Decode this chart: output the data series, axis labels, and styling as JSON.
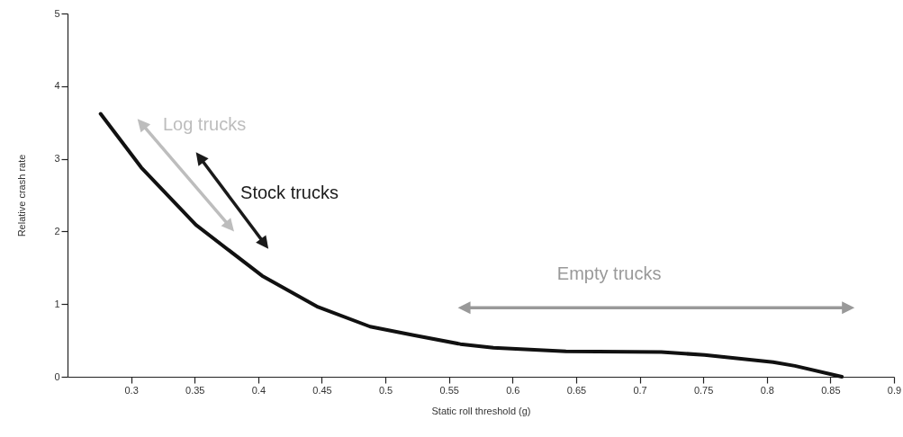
{
  "chart_data": {
    "type": "line",
    "xlabel": "Static roll threshold (g)",
    "ylabel": "Relative crash rate",
    "x": [
      0.276,
      0.308,
      0.351,
      0.403,
      0.447,
      0.488,
      0.523,
      0.559,
      0.585,
      0.642,
      0.717,
      0.751,
      0.805,
      0.822,
      0.859
    ],
    "series": [
      {
        "color": "#111111",
        "values": [
          3.62,
          2.88,
          2.09,
          1.39,
          0.96,
          0.69,
          0.57,
          0.45,
          0.4,
          0.35,
          0.34,
          0.3,
          0.2,
          0.15,
          0
        ]
      }
    ],
    "xlim": [
      0.25,
      0.9
    ],
    "xticks": [
      0.3,
      0.35,
      0.4,
      0.45,
      0.5,
      0.55,
      0.6,
      0.65,
      0.7,
      0.75,
      0.8,
      0.85,
      0.9
    ],
    "ylim": [
      0,
      5
    ],
    "yticks": [
      0,
      1,
      2,
      3,
      4,
      5
    ],
    "grid": false,
    "marker": "none",
    "line_style": "solid",
    "annotations": [
      "Log trucks",
      "Stock trucks",
      "Empty trucks"
    ]
  }
}
